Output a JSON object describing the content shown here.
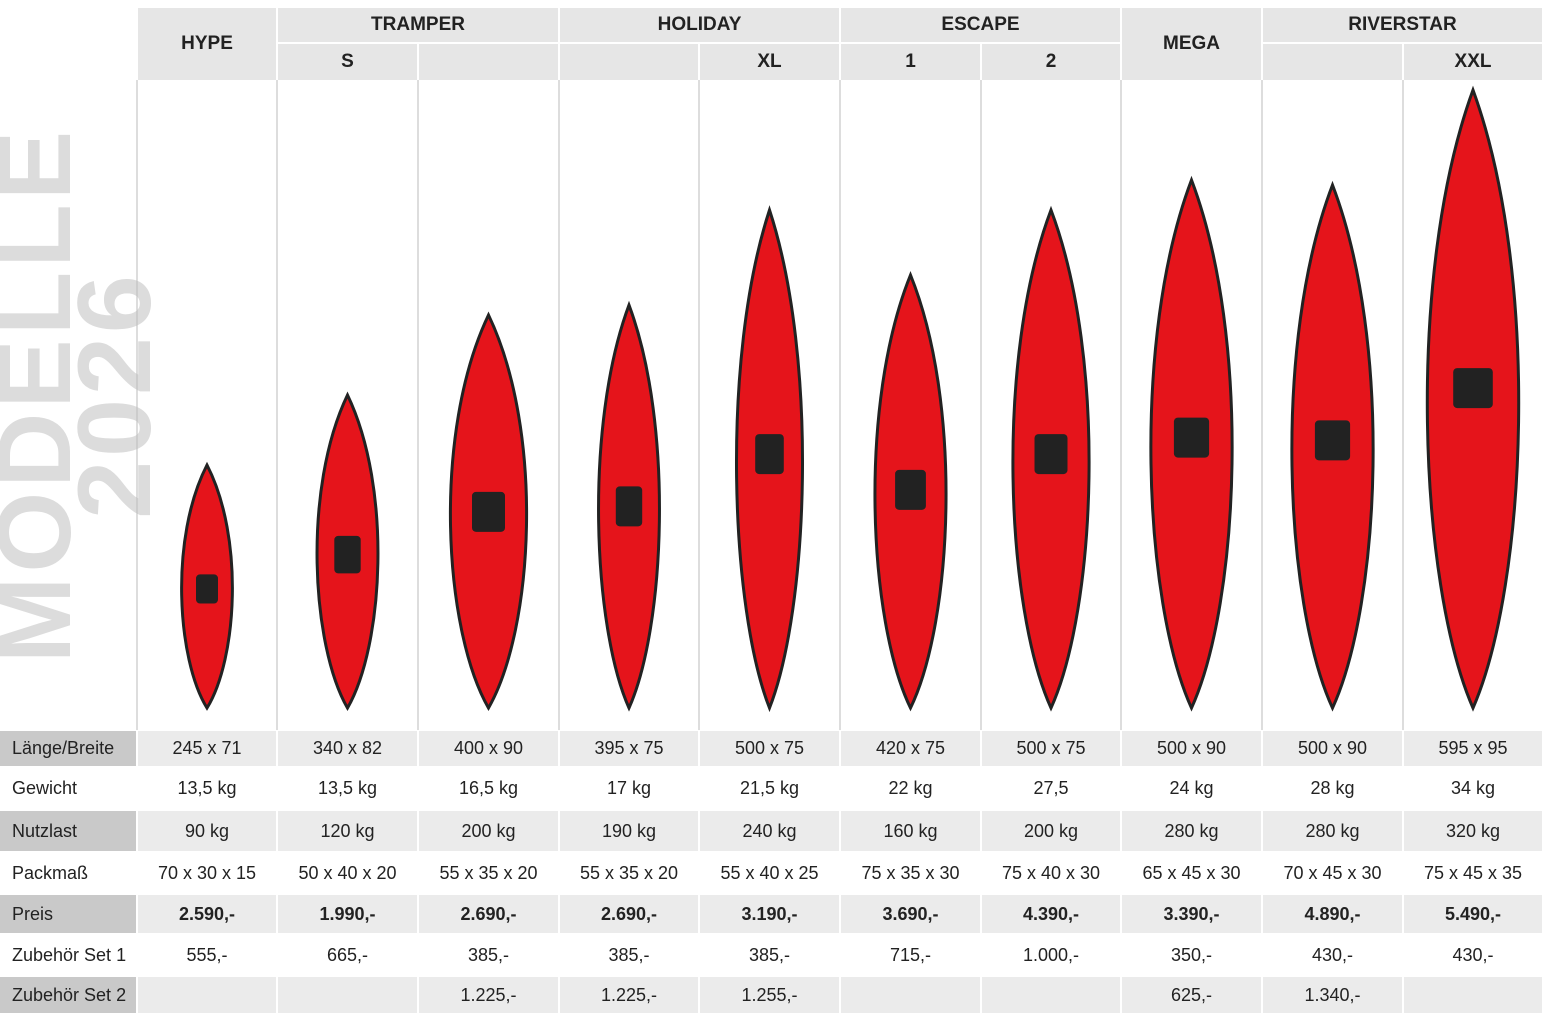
{
  "side_title": "MODELLE 2026",
  "header": {
    "groups": [
      "HYPE",
      "TRAMPER",
      "HOLIDAY",
      "ESCAPE",
      "MEGA",
      "RIVERSTAR"
    ],
    "sub": [
      null,
      "S",
      null,
      null,
      "XL",
      "1",
      "2",
      null,
      null,
      "XXL"
    ]
  },
  "rows": [
    {
      "label": "Länge/Breite",
      "values": [
        "245 x 71",
        "340 x 82",
        "400 x 90",
        "395 x 75",
        "500 x 75",
        "420 x 75",
        "500 x 75",
        "500 x 90",
        "500 x 90",
        "595 x 95"
      ]
    },
    {
      "label": "Gewicht",
      "values": [
        "13,5 kg",
        "13,5 kg",
        "16,5 kg",
        "17 kg",
        "21,5 kg",
        "22 kg",
        "27,5",
        "24 kg",
        "28 kg",
        "34 kg"
      ]
    },
    {
      "label": "Nutzlast",
      "values": [
        "90 kg",
        "120 kg",
        "200 kg",
        "190 kg",
        "240 kg",
        "160 kg",
        "200 kg",
        "280 kg",
        "280 kg",
        "320 kg"
      ]
    },
    {
      "label": "Packmaß",
      "values": [
        "70 x 30 x 15",
        "50 x 40 x 20",
        "55 x 35 x 20",
        "55 x 35 x 20",
        "55 x 40 x 25",
        "75 x 35 x 30",
        "75 x 40 x 30",
        "65 x 45 x 30",
        "70 x 45 x 30",
        "75 x 45 x 35"
      ]
    },
    {
      "label": "Preis",
      "values": [
        "2.590,-",
        "1.990,-",
        "2.690,-",
        "2.690,-",
        "3.190,-",
        "3.690,-",
        "4.390,-",
        "3.390,-",
        "4.890,-",
        "5.490,-"
      ]
    },
    {
      "label": "Zubehör Set 1",
      "values": [
        "555,-",
        "665,-",
        "385,-",
        "385,-",
        "385,-",
        "715,-",
        "1.000,-",
        "350,-",
        "430,-",
        "430,-"
      ]
    },
    {
      "label": "Zubehör Set 2",
      "values": [
        null,
        null,
        "1.225,-",
        "1.225,-",
        "1.255,-",
        null,
        null,
        "625,-",
        "1.340,-",
        null
      ]
    }
  ]
}
